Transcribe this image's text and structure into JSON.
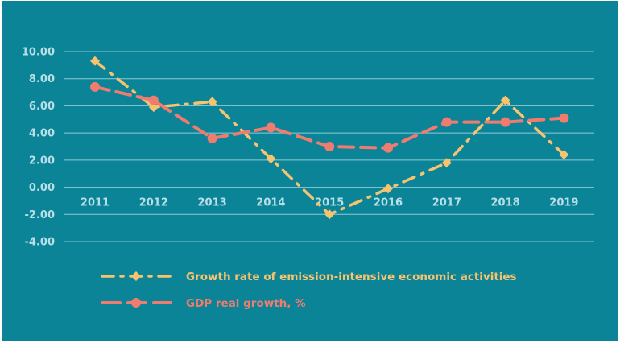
{
  "colors": {
    "background": "#0b8498",
    "grid": "#8fc9d3",
    "tick_text": "#b9dfe6",
    "series_emission": "#f7c36f",
    "series_gdp": "#ef7c6f"
  },
  "chart_data": {
    "type": "line",
    "x": [
      "2011",
      "2012",
      "2013",
      "2014",
      "2015",
      "2016",
      "2017",
      "2018",
      "2019"
    ],
    "ylim": [
      -4,
      10
    ],
    "yticks": [
      "10.00",
      "8.00",
      "6.00",
      "4.00",
      "2.00",
      "0.00",
      "-2.00",
      "-4.00"
    ],
    "ytick_values": [
      10,
      8,
      6,
      4,
      2,
      0,
      -2,
      -4
    ],
    "grid": true,
    "legend_position": "bottom",
    "series": [
      {
        "name": "Growth rate of emission-intensive economic activities",
        "values": [
          9.3,
          5.9,
          6.3,
          2.1,
          -2.0,
          -0.1,
          1.8,
          6.4,
          2.4
        ],
        "color": "#f7c36f",
        "marker": "diamond",
        "line_style": "dash-dot"
      },
      {
        "name": "GDP real growth, %",
        "values": [
          7.4,
          6.4,
          3.6,
          4.4,
          3.0,
          2.9,
          4.8,
          4.8,
          5.1
        ],
        "color": "#ef7c6f",
        "marker": "circle",
        "line_style": "dashed"
      }
    ]
  }
}
